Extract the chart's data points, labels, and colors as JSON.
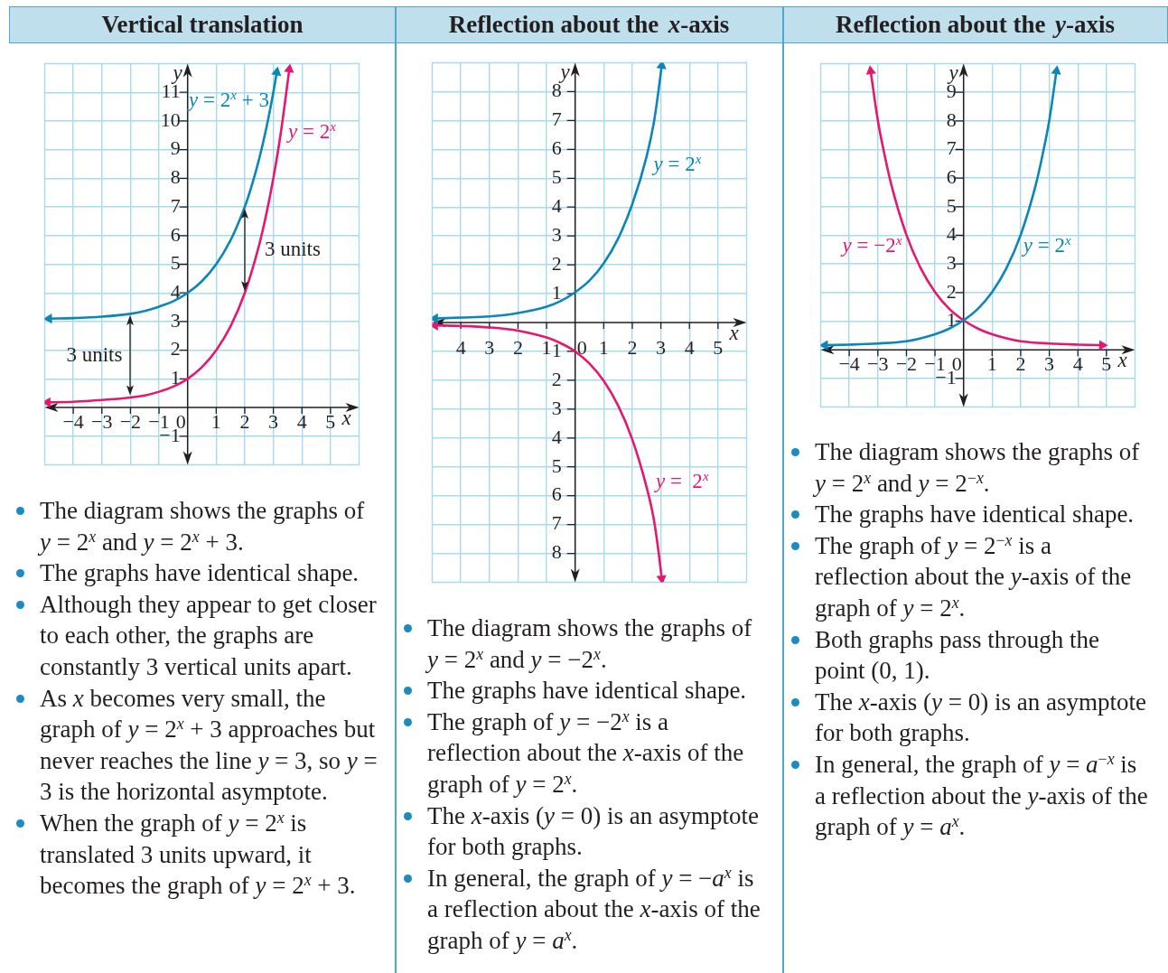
{
  "chart_data": [
    {
      "type": "line",
      "title": "Vertical translation",
      "xlabel": "x",
      "ylabel": "y",
      "xlim": [
        -5,
        6
      ],
      "ylim": [
        -2,
        12
      ],
      "xticks": [
        {
          "value": -4,
          "label": "−4"
        },
        {
          "value": -3,
          "label": "−3"
        },
        {
          "value": -2,
          "label": "−2"
        },
        {
          "value": -1,
          "label": "−1"
        },
        0,
        1,
        2,
        3,
        4,
        5
      ],
      "yticks": [
        {
          "value": -1,
          "label": "−1"
        },
        1,
        2,
        3,
        4,
        5,
        6,
        7,
        8,
        9,
        10,
        11
      ],
      "grid": true,
      "marker": "none",
      "series": [
        {
          "name": "y = 2$^{x}$ + 3",
          "color": "#0a86b9",
          "x": [
            -4.85,
            -4,
            -3,
            -2,
            -1.5,
            -1,
            -0.5,
            0,
            0.5,
            1,
            1.5,
            2,
            2.25,
            2.5,
            2.75,
            3,
            3.12
          ],
          "values": [
            3.1,
            3.12,
            3.17,
            3.27,
            3.37,
            3.52,
            3.71,
            4,
            4.41,
            5,
            5.83,
            7,
            7.76,
            8.66,
            9.73,
            11,
            11.7
          ]
        },
        {
          "name": "y = 2$^{x}$",
          "color": "#e5176f",
          "x": [
            -4.9,
            -4,
            -3,
            -2,
            -1.5,
            -1,
            -0.5,
            0,
            0.5,
            1,
            1.5,
            2,
            2.5,
            2.75,
            3,
            3.25,
            3.56
          ],
          "values": [
            0.18,
            0.2,
            0.26,
            0.35,
            0.42,
            0.55,
            0.73,
            1,
            1.41,
            2,
            2.83,
            4,
            5.66,
            6.73,
            8,
            9.51,
            11.8
          ]
        }
      ],
      "annotations": [
        "3 units",
        "3 units",
        "The diagram shows the graphs of y = 2$^{x}$ and y = 2$^{x}$ + 3.",
        "The graphs have identical shape.",
        "Although they appear to get closer to each other, the graphs are constantly 3 vertical units apart.",
        "As x becomes very small, the graph of y = 2$^{x}$ + 3 approaches but never reaches the line y = 3, so y = 3 is the horizontal asymptote.",
        "When the graph of y = 2$^{x}$ is translated 3 units upward, it becomes the graph of y = 2$^{x}$ + 3."
      ]
    },
    {
      "type": "line",
      "title": "Reflection about the x-axis",
      "xlabel": "x",
      "ylabel": "y",
      "xlim": [
        -5,
        6
      ],
      "ylim": [
        -9,
        9
      ],
      "xticks": [
        {
          "value": -4,
          "label": "4"
        },
        {
          "value": -3,
          "label": "3"
        },
        {
          "value": -2,
          "label": "2"
        },
        {
          "value": -1,
          "label": "1"
        },
        0,
        1,
        2,
        3,
        4,
        5
      ],
      "yticks": [
        {
          "value": -8,
          "label": "8"
        },
        {
          "value": -7,
          "label": "7"
        },
        {
          "value": -6,
          "label": "6"
        },
        {
          "value": -5,
          "label": "5"
        },
        {
          "value": -4,
          "label": "4"
        },
        {
          "value": -3,
          "label": "3"
        },
        {
          "value": -2,
          "label": "2"
        },
        {
          "value": -1,
          "label": "1"
        },
        1,
        2,
        3,
        4,
        5,
        6,
        7,
        8
      ],
      "grid": true,
      "marker": "none",
      "series": [
        {
          "name": "y = 2$^{x}$",
          "color": "#0a86b9",
          "x": [
            -4.9,
            -4,
            -3,
            -2,
            -1,
            -0.5,
            0,
            0.5,
            1,
            1.5,
            2,
            2.5,
            2.75,
            2.9,
            3.03
          ],
          "values": [
            0.14,
            0.17,
            0.21,
            0.33,
            0.55,
            0.75,
            1.05,
            1.45,
            2.05,
            2.9,
            4.1,
            5.75,
            6.9,
            7.9,
            8.9
          ]
        },
        {
          "name": "y =  2$^{x}$",
          "color": "#e5176f",
          "x": [
            -4.9,
            -4,
            -3,
            -2,
            -1,
            -0.5,
            0,
            0.5,
            1,
            1.5,
            2,
            2.5,
            2.75,
            2.9,
            3.03
          ],
          "values": [
            -0.1,
            -0.12,
            -0.17,
            -0.28,
            -0.52,
            -0.72,
            -1,
            -1.42,
            -2.02,
            -2.87,
            -4.05,
            -5.7,
            -6.8,
            -7.8,
            -8.87
          ]
        }
      ],
      "annotations": [
        "The diagram shows the graphs of y = 2$^{x}$ and y = −2$^{x}$.",
        "The graphs have identical shape.",
        "The graph of y = −2$^{x}$ is a reflection about the x-axis of the graph of y = 2$^{x}$.",
        "The x-axis (y = 0) is an asymptote for both graphs.",
        "In general, the graph of y = −a$^{x}$ is a reflection about the x-axis of the graph of y = a$^{x}$."
      ]
    },
    {
      "type": "line",
      "title": "Reflection about the y-axis",
      "xlabel": "x",
      "ylabel": "y",
      "xlim": [
        -5,
        6
      ],
      "ylim": [
        -2,
        10
      ],
      "xticks": [
        {
          "value": -4,
          "label": "−4"
        },
        {
          "value": -3,
          "label": "−3"
        },
        {
          "value": -2,
          "label": "−2"
        },
        {
          "value": -1,
          "label": "−1"
        },
        0,
        1,
        2,
        3,
        4,
        5
      ],
      "yticks": [
        {
          "value": -1,
          "label": "−1"
        },
        1,
        2,
        3,
        4,
        5,
        6,
        7,
        8,
        9
      ],
      "grid": true,
      "marker": "none",
      "series": [
        {
          "name": "y = 2$^{x}$",
          "color": "#0a86b9",
          "x": [
            -4.85,
            -4,
            -3,
            -2,
            -1.5,
            -1,
            -0.5,
            0,
            0.5,
            1,
            1.5,
            2,
            2.5,
            2.75,
            3,
            3.25
          ],
          "values": [
            0.16,
            0.18,
            0.22,
            0.3,
            0.4,
            0.54,
            0.74,
            1.03,
            1.43,
            2.02,
            2.85,
            4.02,
            5.66,
            6.75,
            8.02,
            9.74
          ]
        },
        {
          "name": "y = −2$^{x}$",
          "color": "#e5176f",
          "x": [
            -3.25,
            -3,
            -2.75,
            -2.5,
            -2,
            -1.5,
            -1,
            -0.5,
            0,
            0.5,
            1,
            1.5,
            2,
            3,
            4,
            4.85
          ],
          "values": [
            9.74,
            8.02,
            6.75,
            5.66,
            4.02,
            2.85,
            2.02,
            1.43,
            1.03,
            0.74,
            0.54,
            0.4,
            0.3,
            0.22,
            0.18,
            0.16
          ]
        }
      ],
      "annotations": [
        "The diagram shows the graphs of y = 2$^{x}$ and y = 2$^{−x}$.",
        "The graphs have identical shape.",
        "The graph of y = 2$^{−x}$ is a reflection about the y-axis of the graph of y = 2$^{x}$.",
        "Both graphs pass through the point (0, 1).",
        "The x-axis (y = 0) is an asymptote for both graphs.",
        "In general, the graph of y = a$^{−x}$ is a reflection about the y-axis of the graph of y = a$^{x}$."
      ]
    }
  ]
}
